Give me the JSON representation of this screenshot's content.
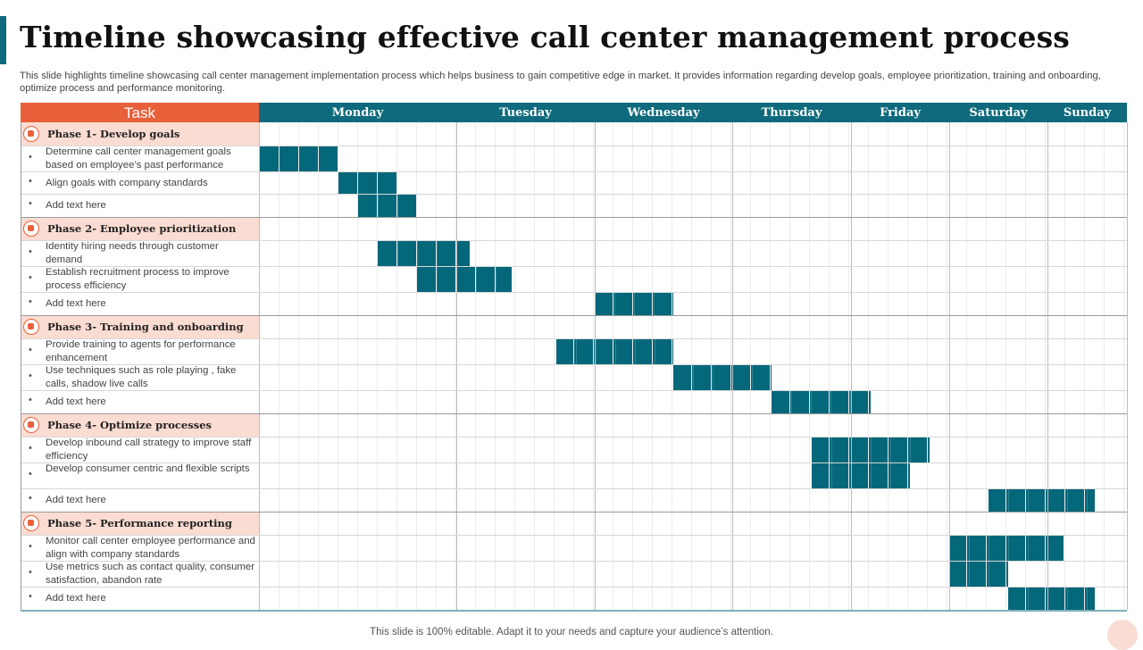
{
  "title": "Timeline showcasing effective call center management process",
  "subtitle": "This slide highlights timeline showcasing call center management implementation process which helps business to gain competitive edge in market. It provides information regarding develop goals, employee prioritization, training and onboarding, optimize process and performance monitoring.",
  "footer": "This slide is 100% editable. Adapt it to your needs and capture your audience’s attention.",
  "colors": {
    "task_header": "#e8603a",
    "day_header": "#0e6a7c",
    "bar": "#05677a",
    "phase_row": "#fbdcd2"
  },
  "chart_data": {
    "type": "gantt",
    "task_header": "Task",
    "days": [
      "Monday",
      "Tuesday",
      "Wednesday",
      "Thursday",
      "Friday",
      "Saturday",
      "Sunday"
    ],
    "phases": [
      {
        "label": "Phase 1- Develop goals",
        "icon": "target-icon",
        "tasks": [
          {
            "label": "Determine call center management goals based on employee’s past performance",
            "start": 0.0,
            "end": 0.4
          },
          {
            "label": "Align goals with company standards",
            "start": 0.4,
            "end": 0.7
          },
          {
            "label": "Add text here",
            "start": 0.5,
            "end": 0.8
          }
        ]
      },
      {
        "label": "Phase 2- Employee prioritization",
        "icon": "people-icon",
        "tasks": [
          {
            "label": "Identity hiring needs through customer demand",
            "start": 0.6,
            "end": 1.1
          },
          {
            "label": "Establish recruitment process to improve process efficiency",
            "start": 0.8,
            "end": 1.4
          },
          {
            "label": "Add text here",
            "start": 2.0,
            "end": 2.57
          }
        ]
      },
      {
        "label": "Phase 3- Training and onboarding",
        "icon": "training-icon",
        "tasks": [
          {
            "label": "Provide training to agents for performance enhancement",
            "start": 1.72,
            "end": 2.57
          },
          {
            "label": "Use techniques such as role playing , fake calls, shadow live calls",
            "start": 2.57,
            "end": 3.33
          },
          {
            "label": "Add text here",
            "start": 3.33,
            "end": 4.2
          }
        ]
      },
      {
        "label": "Phase 4- Optimize processes",
        "icon": "process-icon",
        "tasks": [
          {
            "label": "Develop inbound call strategy to improve staff efficiency",
            "start": 3.67,
            "end": 4.8
          },
          {
            "label": "Develop consumer centric and flexible scripts",
            "start": 3.67,
            "end": 4.6
          },
          {
            "label": "Add text here",
            "start": 5.4,
            "end": 6.6
          }
        ]
      },
      {
        "label": "Phase 5- Performance reporting",
        "icon": "report-icon",
        "tasks": [
          {
            "label": "Monitor call center employee performance and align with company standards",
            "start": 5.0,
            "end": 6.2
          },
          {
            "label": "Use metrics such as contact quality, consumer satisfaction, abandon rate",
            "start": 5.0,
            "end": 5.6
          },
          {
            "label": "Add text here",
            "start": 5.6,
            "end": 6.6
          }
        ]
      }
    ]
  }
}
